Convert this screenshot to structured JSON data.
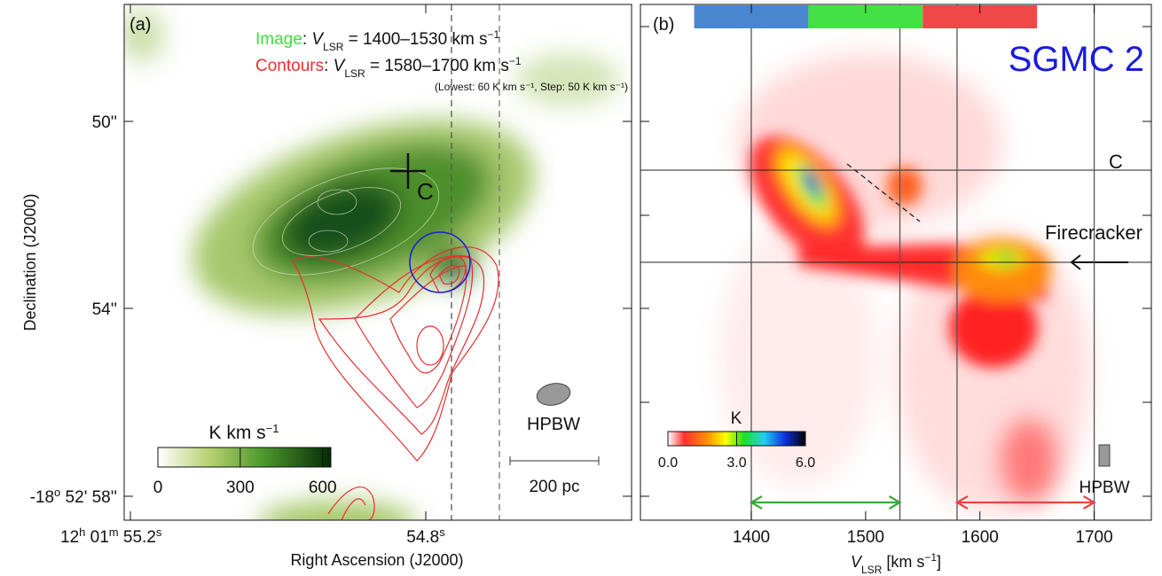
{
  "panel_a": {
    "label": "(a)",
    "image_key": {
      "name": "Image",
      "v": "V",
      "sub": "LSR",
      "range": " = 1400–1530 km s",
      "exp": "−1"
    },
    "contour_key": {
      "name": "Contours",
      "v": "V",
      "sub": "LSR",
      "range": " = 1580–1700 km s",
      "exp": "−1"
    },
    "contour_note": "(Lowest: 60 K km s⁻¹, Step: 50 K km s⁻¹)",
    "source_label": "C",
    "beam_label": "HPBW",
    "scale_label": "200 pc",
    "y_axis_title": "Declination (J2000)",
    "x_axis_title": "Right Ascension (J2000)",
    "y_tick_labels": [
      [
        "50''"
      ],
      [
        "54''"
      ],
      [
        "-18",
        "o",
        " 52' 58''"
      ]
    ],
    "x_tick_labels": [
      [
        "12",
        "h",
        " 01",
        "m",
        " 55.2",
        "s"
      ],
      [
        "54.8",
        "s"
      ]
    ],
    "colorbar": {
      "title": "K km s",
      "exp": "−1",
      "lim": [
        0,
        630
      ],
      "ticks": [
        0,
        300,
        600
      ]
    }
  },
  "panel_b": {
    "label": "(b)",
    "title": "SGMC 2",
    "x_axis_title": {
      "v": "V",
      "sub": "LSR",
      "unit": " [km s",
      "exp": "−1",
      "close": "]"
    },
    "xlim": [
      1303,
      1750
    ],
    "xticks": [
      1400,
      1500,
      1600,
      1700
    ],
    "velocity_lines": [
      1400,
      1530,
      1580,
      1700
    ],
    "bands": [
      {
        "color": "#4a86d0",
        "range": [
          1350,
          1450
        ]
      },
      {
        "color": "#45e045",
        "range": [
          1450,
          1550
        ]
      },
      {
        "color": "#f04848",
        "range": [
          1550,
          1650
        ]
      }
    ],
    "arrows": [
      {
        "color": "#3aa83a",
        "range": [
          1400,
          1530
        ]
      },
      {
        "color": "#e84545",
        "range": [
          1580,
          1700
        ]
      }
    ],
    "position_labels": [
      "C",
      "Firecracker"
    ],
    "beam_label": "HPBW",
    "colorbar": {
      "title": "K",
      "lim": [
        0,
        6
      ],
      "ticks": [
        {
          "value": 0,
          "label": "0.0"
        },
        {
          "value": 3,
          "label": "3.0"
        },
        {
          "value": 6,
          "label": "6.0"
        }
      ]
    }
  }
}
